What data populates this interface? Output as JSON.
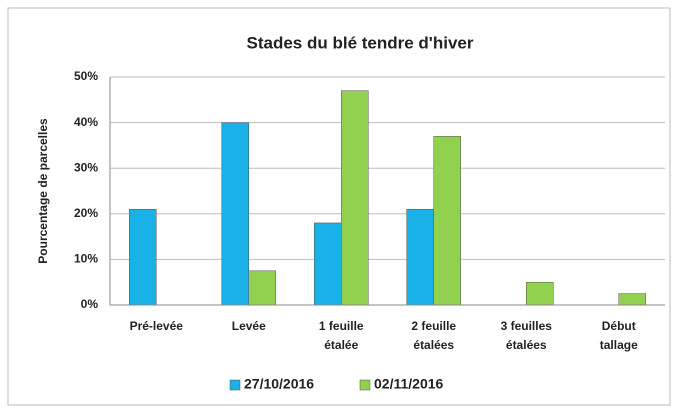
{
  "chart_data": {
    "type": "bar",
    "title": "Stades du blé tendre d'hiver",
    "y_label": "Pourcentage de parcelles",
    "categories": [
      "Pré-levée",
      "Levée",
      "1 feuille étalée",
      "2 feuille étalées",
      "3 feuilles étalées",
      "Début tallage"
    ],
    "series": [
      {
        "name": "27/10/2016",
        "color": "#1ab0e8",
        "values": [
          21,
          40,
          18,
          21,
          0,
          0
        ]
      },
      {
        "name": "02/11/2016",
        "color": "#92d050",
        "values": [
          0,
          7.5,
          47,
          37,
          5,
          2.5
        ]
      }
    ],
    "ylim": [
      0,
      50
    ],
    "yticks": [
      {
        "value": 0,
        "label": "0%"
      },
      {
        "value": 10,
        "label": "10%"
      },
      {
        "value": 20,
        "label": "20%"
      },
      {
        "value": 30,
        "label": "30%"
      },
      {
        "value": 40,
        "label": "40%"
      },
      {
        "value": 50,
        "label": "50%"
      }
    ],
    "grid": true,
    "legend": "bottom"
  }
}
